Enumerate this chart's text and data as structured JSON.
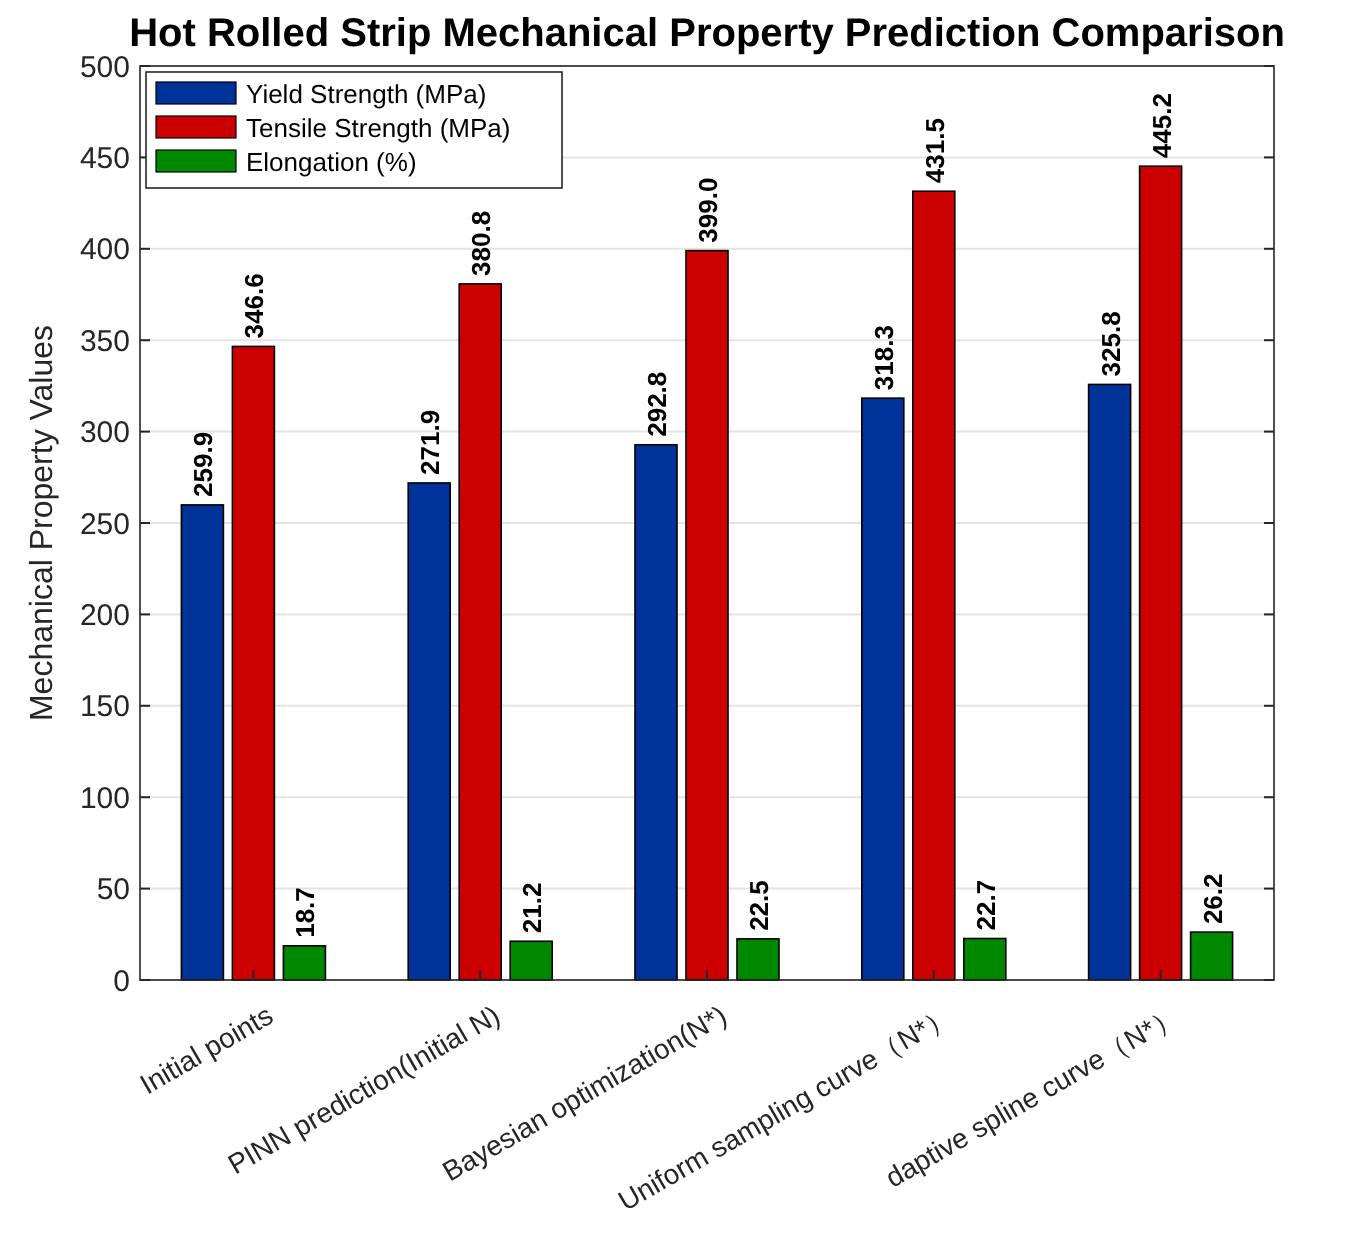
{
  "chart_data": {
    "type": "bar",
    "title": "Hot Rolled Strip Mechanical Property Prediction Comparison",
    "ylabel": "Mechanical Property Values",
    "categories": [
      "Initial points",
      "PINN prediction(Initial N)",
      "Bayesian optimization(N*)",
      "Uniform sampling curve（N*）",
      "daptive spline curve（N*）"
    ],
    "series": [
      {
        "name": "Yield Strength (MPa)",
        "color": "#003399",
        "values": [
          259.9,
          271.9,
          292.8,
          318.3,
          325.8
        ]
      },
      {
        "name": "Tensile Strength (MPa)",
        "color": "#cc0000",
        "values": [
          346.6,
          380.8,
          399.0,
          431.5,
          445.2
        ]
      },
      {
        "name": "Elongation (%)",
        "color": "#008800",
        "values": [
          18.7,
          21.2,
          22.5,
          22.7,
          26.2
        ]
      }
    ],
    "value_labels": [
      [
        "259.9",
        "271.9",
        "292.8",
        "318.3",
        "325.8"
      ],
      [
        "346.6",
        "380.8",
        "399.0",
        "431.5",
        "445.2"
      ],
      [
        "18.7",
        "21.2",
        "22.5",
        "22.7",
        "26.2"
      ]
    ],
    "ylim": [
      0,
      500
    ],
    "yticks": [
      0,
      50,
      100,
      150,
      200,
      250,
      300,
      350,
      400,
      450,
      500
    ],
    "grid": "y",
    "legend": "top left"
  }
}
